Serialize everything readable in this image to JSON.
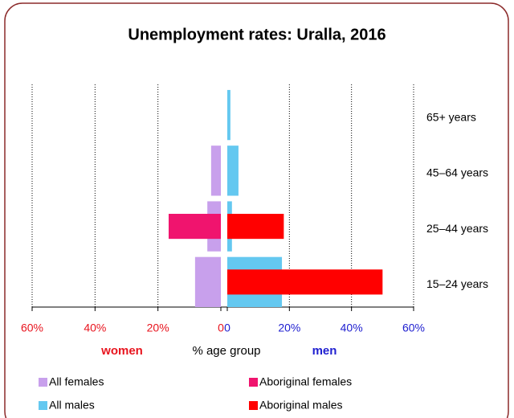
{
  "chart_data": {
    "type": "butterfly-bar",
    "title": "Unemployment rates: Uralla, 2016",
    "categories": [
      "65+ years",
      "45–64 years",
      "25–44 years",
      "15–24 years"
    ],
    "left_label": "women",
    "center_label": "% age group",
    "right_label": "men",
    "left_xlim": [
      0,
      60
    ],
    "right_xlim": [
      0,
      60
    ],
    "left_xticks": [
      {
        "value": 60,
        "label": "60%"
      },
      {
        "value": 40,
        "label": "40%"
      },
      {
        "value": 20,
        "label": "20%"
      },
      0
    ],
    "right_xticks": [
      0,
      {
        "value": 20,
        "label": "20%"
      },
      {
        "value": 40,
        "label": "40%"
      },
      {
        "value": 60,
        "label": "60%"
      }
    ],
    "left_color": "#e8141e",
    "right_color": "#2020d0",
    "grid": true,
    "series": [
      {
        "name": "All females",
        "side": "left",
        "width": "wide",
        "color": "#c8a0ec",
        "values": [
          0,
          3.1,
          4.3,
          8.2
        ]
      },
      {
        "name": "Aboriginal females",
        "side": "left",
        "width": "narrow",
        "color": "#f0146e",
        "values": [
          0,
          0,
          16.6,
          0
        ]
      },
      {
        "name": "All males",
        "side": "right",
        "width": "wide",
        "color": "#64c8f0",
        "values": [
          1,
          3.6,
          1.5,
          17.6
        ]
      },
      {
        "name": "Aboriginal males",
        "side": "right",
        "width": "narrow",
        "color": "#ff0000",
        "values": [
          0,
          0,
          18.2,
          50
        ]
      }
    ]
  }
}
